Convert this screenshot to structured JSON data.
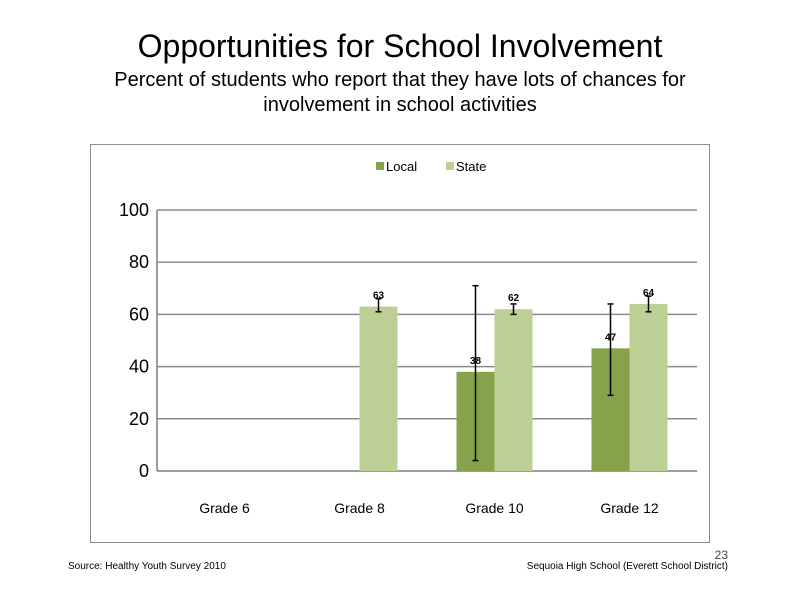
{
  "slide": {
    "title": "Opportunities  for School Involvement",
    "subtitle": "Percent of students  who report that they have lots of chances  for involvement  in school activities",
    "source": "Source: Healthy Youth Survey 2010",
    "school": "Sequoia High School (Everett School District)",
    "page_number": "23"
  },
  "chart_data": {
    "type": "bar",
    "categories": [
      "Grade 6",
      "Grade 8",
      "Grade 10",
      "Grade 12"
    ],
    "series": [
      {
        "name": "Local",
        "color": "#86a24b",
        "values": [
          null,
          null,
          38,
          47
        ],
        "labels": [
          "",
          "",
          "38",
          "47"
        ],
        "error_low": [
          null,
          null,
          4,
          29
        ],
        "error_high": [
          null,
          null,
          71,
          64
        ]
      },
      {
        "name": "State",
        "color": "#bccf95",
        "values": [
          null,
          63,
          62,
          64
        ],
        "labels": [
          "",
          "63",
          "62",
          "64"
        ],
        "error_low": [
          null,
          61,
          60,
          61
        ],
        "error_high": [
          null,
          66,
          64,
          67
        ]
      }
    ],
    "yticks": [
      "0",
      "20",
      "40",
      "60",
      "80",
      "100"
    ],
    "ylim": [
      0,
      100
    ],
    "grid": true,
    "legend_position": "top"
  }
}
